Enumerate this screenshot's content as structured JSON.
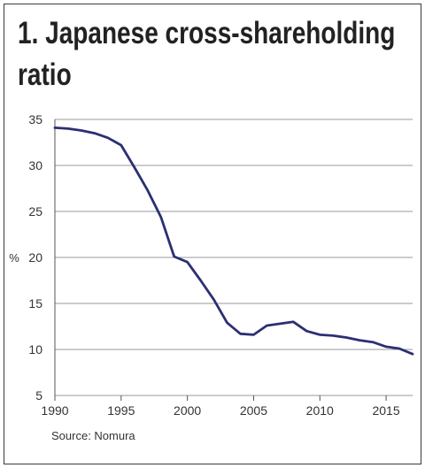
{
  "chart_data": {
    "type": "line",
    "title_lines": [
      "1. Japanese cross-shareholding",
      "ratio"
    ],
    "ylabel": "%",
    "xlabel": "",
    "xlim": [
      1990,
      2017
    ],
    "ylim": [
      5,
      35
    ],
    "yticks": [
      5,
      10,
      15,
      20,
      25,
      30,
      35
    ],
    "xticks": [
      1990,
      1995,
      2000,
      2005,
      2010,
      2015
    ],
    "grid": "horizontal",
    "color": "#2b2f73",
    "series": [
      {
        "x": [
          1990,
          1991,
          1992,
          1993,
          1994,
          1995,
          1996,
          1997,
          1998,
          1999,
          2000,
          2001,
          2002,
          2003,
          2004,
          2005,
          2006,
          2007,
          2008,
          2009,
          2010,
          2011,
          2012,
          2013,
          2014,
          2015,
          2016,
          2017
        ],
        "values": [
          34.1,
          34.0,
          33.8,
          33.5,
          33.0,
          32.2,
          29.8,
          27.3,
          24.4,
          20.1,
          19.5,
          17.5,
          15.4,
          12.9,
          11.7,
          11.6,
          12.6,
          12.8,
          13.0,
          12.0,
          11.6,
          11.5,
          11.3,
          11.0,
          10.8,
          10.3,
          10.1,
          9.5
        ]
      }
    ],
    "source": "Source: Nomura"
  }
}
